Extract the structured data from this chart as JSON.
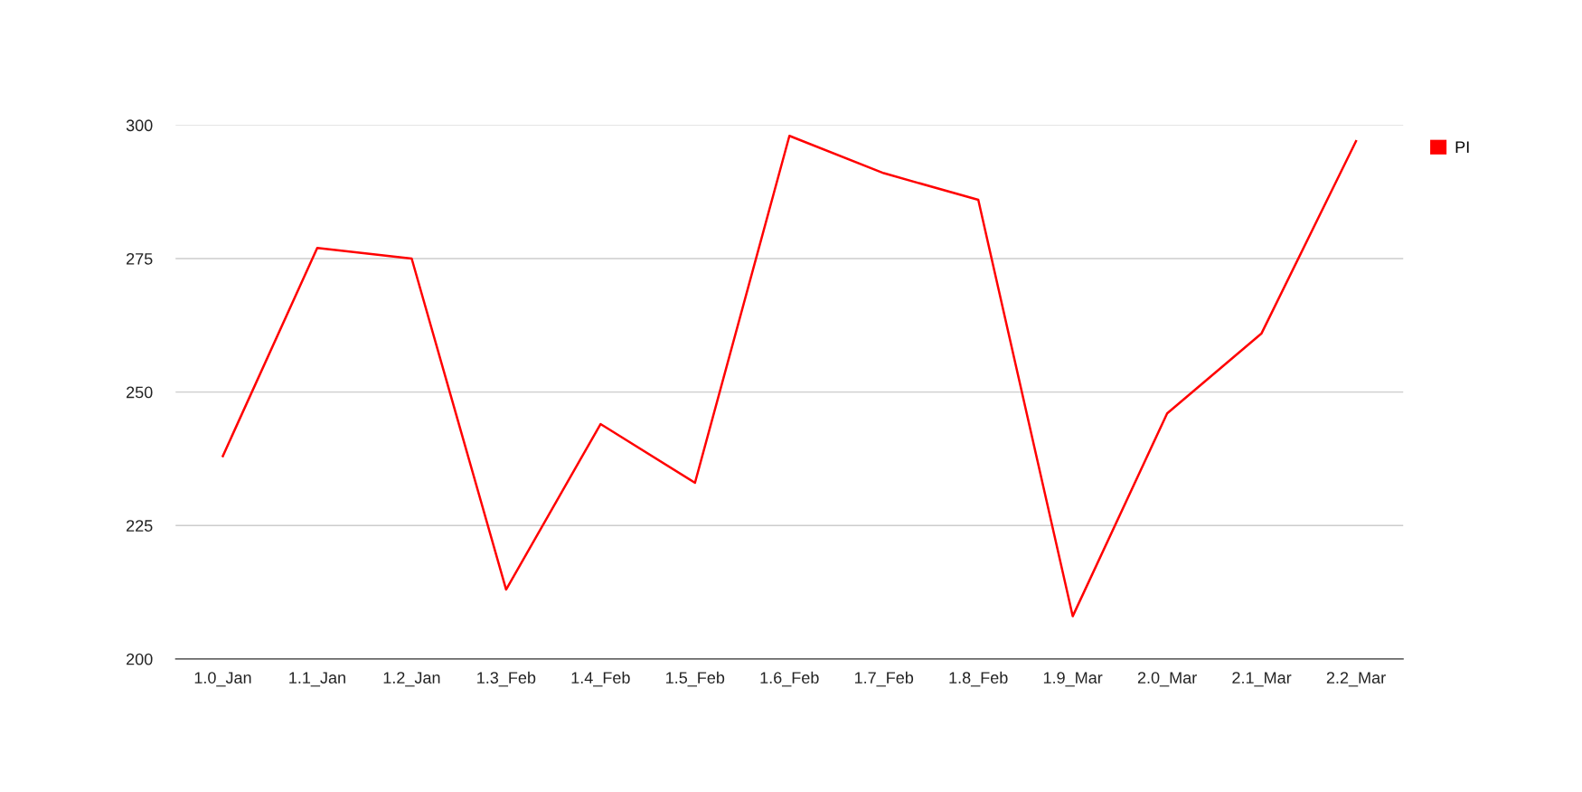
{
  "chart_data": {
    "type": "line",
    "categories": [
      "1.0_Jan",
      "1.1_Jan",
      "1.2_Jan",
      "1.3_Feb",
      "1.4_Feb",
      "1.5_Feb",
      "1.6_Feb",
      "1.7_Feb",
      "1.8_Feb",
      "1.9_Mar",
      "2.0_Mar",
      "2.1_Mar",
      "2.2_Mar"
    ],
    "series": [
      {
        "name": "PI",
        "color": "#ff0000",
        "values": [
          238,
          277,
          275,
          213,
          244,
          233,
          298,
          291,
          286,
          208,
          246,
          261,
          297
        ]
      }
    ],
    "ylim": [
      200,
      300
    ],
    "yticks": [
      200,
      225,
      250,
      275,
      300
    ],
    "grid": "y",
    "legend": "top right",
    "marker": "none",
    "line_style": "solid"
  }
}
